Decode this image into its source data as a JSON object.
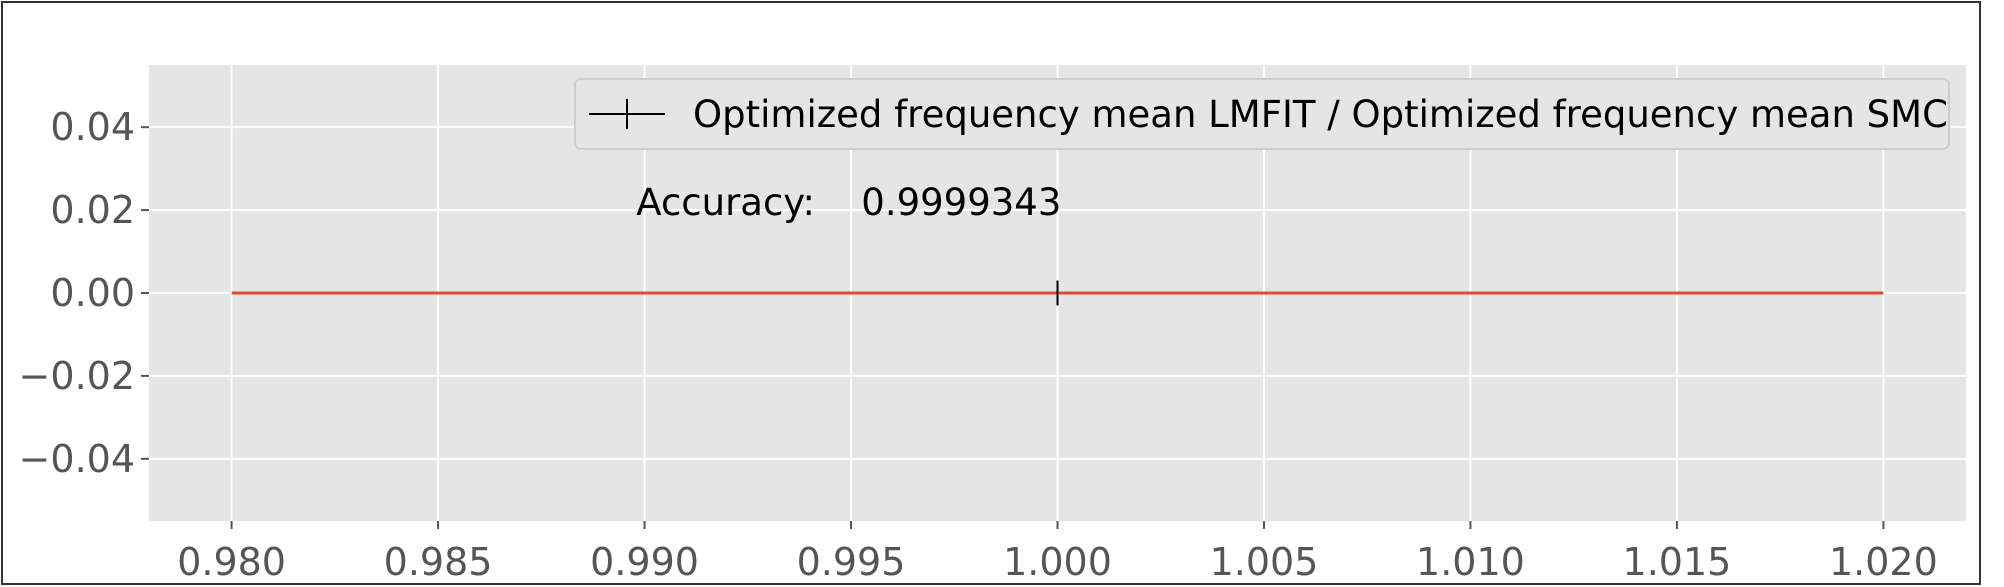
{
  "chart_data": {
    "type": "line",
    "title": "",
    "xlabel": "",
    "ylabel": "",
    "xlim": [
      0.978,
      1.022
    ],
    "ylim": [
      -0.055,
      0.055
    ],
    "grid": true,
    "legend_placement": "top-right",
    "x_ticks": [
      {
        "value": 0.98,
        "label": "0.980"
      },
      {
        "value": 0.985,
        "label": "0.985"
      },
      {
        "value": 0.99,
        "label": "0.990"
      },
      {
        "value": 0.995,
        "label": "0.995"
      },
      {
        "value": 1.0,
        "label": "1.000"
      },
      {
        "value": 1.005,
        "label": "1.005"
      },
      {
        "value": 1.01,
        "label": "1.010"
      },
      {
        "value": 1.015,
        "label": "1.015"
      },
      {
        "value": 1.02,
        "label": "1.020"
      }
    ],
    "y_ticks": [
      {
        "value": 0.04,
        "label": "0.04"
      },
      {
        "value": 0.02,
        "label": "0.02"
      },
      {
        "value": 0.0,
        "label": "0.00"
      },
      {
        "value": -0.02,
        "label": "−0.02"
      },
      {
        "value": -0.04,
        "label": "−0.04"
      }
    ],
    "reference_line": {
      "x": [
        0.98,
        1.02
      ],
      "y": [
        0,
        0
      ],
      "color": "#e24a33"
    },
    "series": [
      {
        "name": "Optimized frequency mean LMFIT / Optimized frequency mean SMC",
        "x": [
          1.0
        ],
        "y": [
          0.0
        ],
        "y_error": 0.003,
        "marker": "errorbar",
        "color": "#000000"
      }
    ],
    "annotation": {
      "label": "Accuracy:",
      "value": "0.9999343",
      "x": 0.9898,
      "y": 0.022
    },
    "colors": {
      "plot_background": "#e5e5e5",
      "grid": "#ffffff",
      "tick_text": "#555555"
    }
  }
}
